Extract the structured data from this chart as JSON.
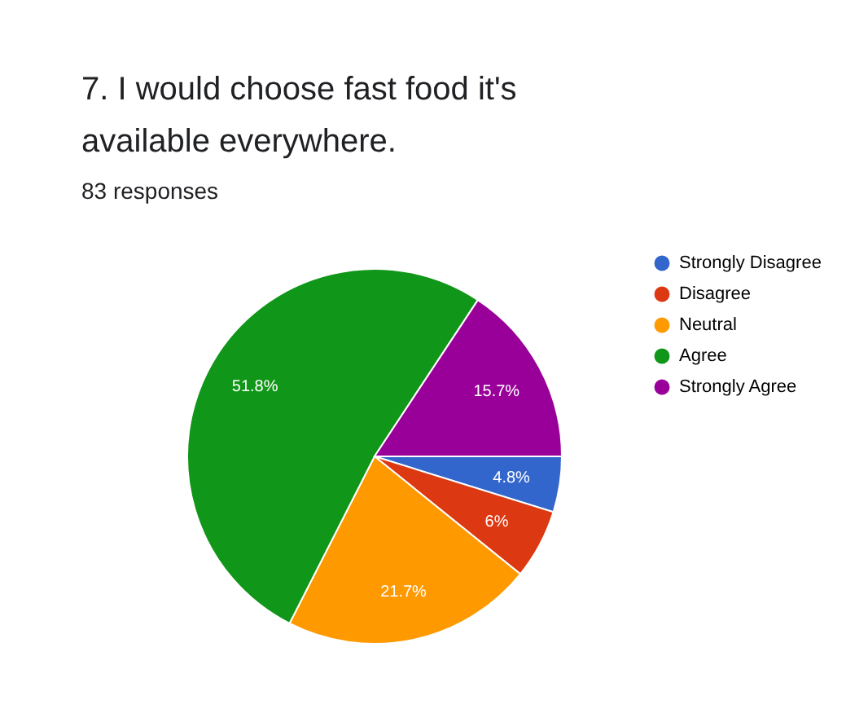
{
  "chart_data": {
    "type": "pie",
    "title": "7. I would choose fast food it's available everywhere.",
    "subtitle": "83 responses",
    "categories": [
      "Strongly Disagree",
      "Disagree",
      "Neutral",
      "Agree",
      "Strongly Agree"
    ],
    "values": [
      4.8,
      6,
      21.7,
      51.8,
      15.7
    ],
    "colors": [
      "#3366cc",
      "#dc3912",
      "#ff9900",
      "#109618",
      "#990099"
    ],
    "value_labels": [
      "4.8%",
      "6%",
      "21.7%",
      "51.8%",
      "15.7%"
    ],
    "legend": "right"
  }
}
